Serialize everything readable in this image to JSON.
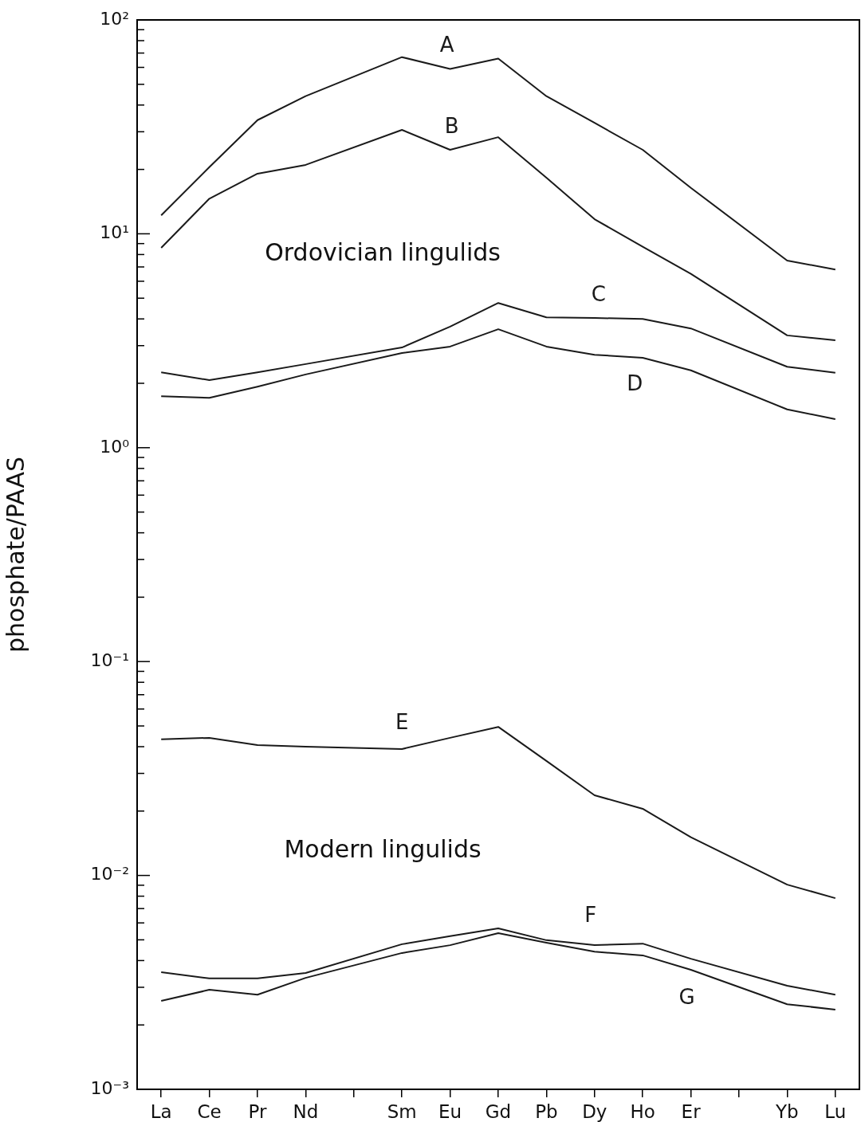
{
  "chart_data": {
    "type": "line",
    "ylabel": "phosphate/PAAS",
    "log": "y",
    "line_style": "solid",
    "categories": [
      "La",
      "Ce",
      "Pr",
      "Nd",
      null,
      "Sm",
      "Eu",
      "Gd",
      "Pb",
      "Dy",
      "Ho",
      "Er",
      null,
      "Yb",
      "Lu"
    ],
    "ylim": [
      0.001,
      100
    ],
    "yticks": [
      {
        "value": 0.001,
        "label": "10⁻³"
      },
      {
        "value": 0.002,
        "label": null
      },
      {
        "value": 0.003,
        "label": null
      },
      {
        "value": 0.004,
        "label": null
      },
      {
        "value": 0.005,
        "label": null
      },
      {
        "value": 0.006,
        "label": null
      },
      {
        "value": 0.007,
        "label": null
      },
      {
        "value": 0.008,
        "label": null
      },
      {
        "value": 0.009,
        "label": null
      },
      {
        "value": 0.01,
        "label": "10⁻²"
      },
      {
        "value": 0.02,
        "label": null
      },
      {
        "value": 0.03,
        "label": null
      },
      {
        "value": 0.04,
        "label": null
      },
      {
        "value": 0.05,
        "label": null
      },
      {
        "value": 0.06,
        "label": null
      },
      {
        "value": 0.07,
        "label": null
      },
      {
        "value": 0.08,
        "label": null
      },
      {
        "value": 0.09,
        "label": null
      },
      {
        "value": 0.1,
        "label": "10⁻¹"
      },
      {
        "value": 0.2,
        "label": null
      },
      {
        "value": 0.3,
        "label": null
      },
      {
        "value": 0.4,
        "label": null
      },
      {
        "value": 0.5,
        "label": null
      },
      {
        "value": 0.6,
        "label": null
      },
      {
        "value": 0.7,
        "label": null
      },
      {
        "value": 0.8,
        "label": null
      },
      {
        "value": 0.9,
        "label": null
      },
      {
        "value": 1,
        "label": "10⁰"
      },
      {
        "value": 2,
        "label": null
      },
      {
        "value": 3,
        "label": null
      },
      {
        "value": 4,
        "label": null
      },
      {
        "value": 5,
        "label": null
      },
      {
        "value": 6,
        "label": null
      },
      {
        "value": 7,
        "label": null
      },
      {
        "value": 8,
        "label": null
      },
      {
        "value": 9,
        "label": null
      },
      {
        "value": 10,
        "label": "10¹"
      },
      {
        "value": 20,
        "label": null
      },
      {
        "value": 30,
        "label": null
      },
      {
        "value": 40,
        "label": null
      },
      {
        "value": 50,
        "label": null
      },
      {
        "value": 60,
        "label": null
      },
      {
        "value": 70,
        "label": null
      },
      {
        "value": 80,
        "label": null
      },
      {
        "value": 90,
        "label": null
      },
      {
        "value": 100,
        "label": "10²"
      }
    ],
    "series": [
      {
        "name": "A",
        "color": "#1a1a1a",
        "values": [
          12.2,
          20.5,
          34,
          44,
          null,
          67,
          59,
          66,
          44,
          33,
          24.7,
          16.4,
          null,
          7.5,
          6.8
        ]
      },
      {
        "name": "B",
        "color": "#1a1a1a",
        "values": [
          8.6,
          14.6,
          19.1,
          21,
          null,
          30.6,
          24.7,
          28.3,
          18.3,
          11.7,
          8.7,
          6.5,
          null,
          3.35,
          3.18
        ]
      },
      {
        "name": "C",
        "color": "#1a1a1a",
        "values": [
          2.25,
          2.07,
          2.25,
          2.46,
          null,
          2.94,
          3.68,
          4.75,
          4.07,
          4.04,
          4.0,
          3.61,
          null,
          2.39,
          2.24
        ]
      },
      {
        "name": "D",
        "color": "#1a1a1a",
        "values": [
          1.74,
          1.71,
          1.93,
          2.2,
          null,
          2.77,
          2.97,
          3.58,
          2.97,
          2.72,
          2.63,
          2.3,
          null,
          1.51,
          1.36
        ]
      },
      {
        "name": "E",
        "color": "#1a1a1a",
        "values": [
          0.0433,
          0.044,
          0.0407,
          0.04,
          null,
          0.039,
          0.044,
          0.0495,
          0.0343,
          0.0237,
          0.0205,
          0.0151,
          null,
          0.00906,
          0.00783
        ]
      },
      {
        "name": "F",
        "color": "#1a1a1a",
        "values": [
          0.00353,
          0.0033,
          0.0033,
          0.0035,
          null,
          0.00477,
          0.0052,
          0.00566,
          0.00498,
          0.00472,
          0.0048,
          0.00408,
          null,
          0.00305,
          0.00277
        ]
      },
      {
        "name": "G",
        "color": "#1a1a1a",
        "values": [
          0.00259,
          0.00292,
          0.00277,
          0.00332,
          null,
          0.00434,
          0.00472,
          0.00537,
          0.00485,
          0.0044,
          0.00423,
          0.00362,
          null,
          0.0025,
          0.00236
        ]
      }
    ],
    "annotations": [
      "Ordovician lingulids",
      "Modern lingulids"
    ]
  }
}
